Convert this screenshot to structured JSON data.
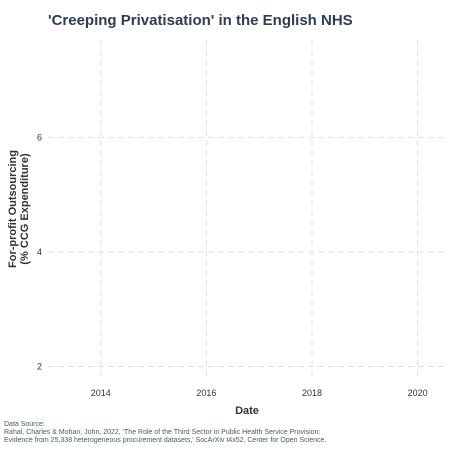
{
  "chart_data": {
    "type": "line",
    "title": "'Creeping Privatisation' in the English NHS",
    "xlabel": "Date",
    "ylabel_lines": [
      "For-profit Outsourcing",
      "(% CCG Expenditure)"
    ],
    "x_ticks": [
      "2014",
      "2016",
      "2018",
      "2020"
    ],
    "y_ticks": [
      "2",
      "4",
      "6"
    ],
    "xlim": [
      2013,
      2020.5
    ],
    "ylim": [
      1.8,
      7.7
    ],
    "grid": true,
    "series": []
  },
  "caption": {
    "line1": "Data Source:",
    "line2": "Rahal, Charles & Mohan, John, 2022, 'The Role of the Third Sector in Public Health Service Provision:",
    "line3": "Evidence from 25,338 heterogeneous procurement datasets,' SocArXiv t4x52, Center for Open Science."
  },
  "colors": {
    "title": "#2e3d4f",
    "axis_text": "#333333",
    "grid": "#e0e0e0",
    "caption": "#4a5a6b"
  }
}
